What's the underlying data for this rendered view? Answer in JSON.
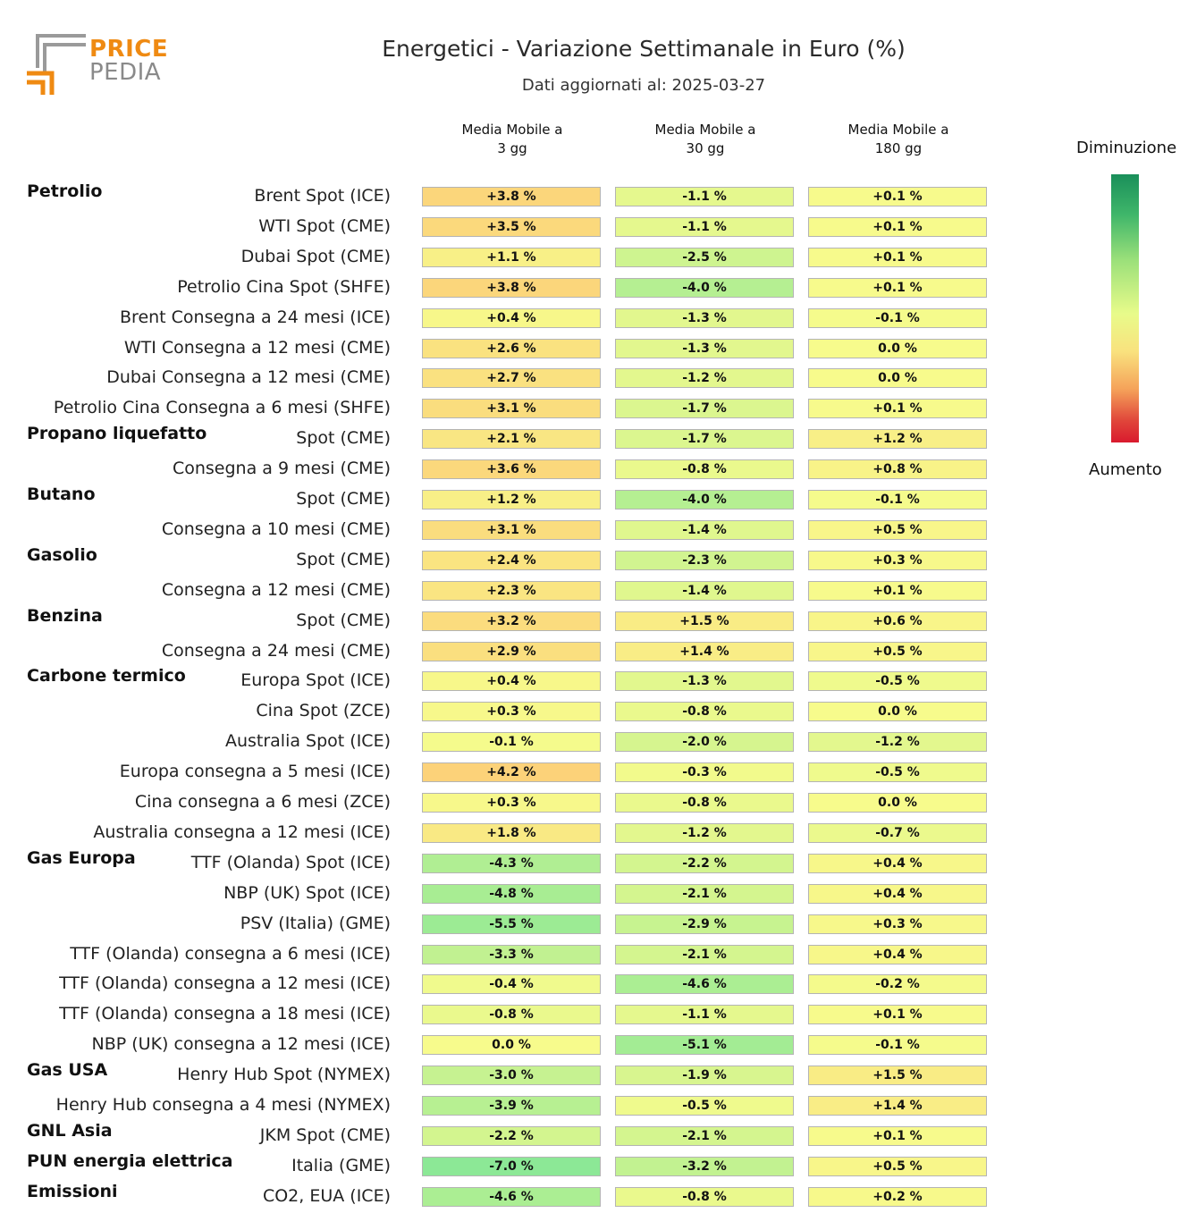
{
  "logo": {
    "word1": "PRICE",
    "word2": "PEDIA",
    "accent": "#ef8a12",
    "grey": "#9a9a9a"
  },
  "header": {
    "title": "Energetici - Variazione Settimanale in Euro (%)",
    "subtitle": "Dati aggiornati al: 2025-03-27"
  },
  "legend": {
    "top_label": "Diminuzione",
    "bottom_label": "Aumento"
  },
  "chart_data": {
    "type": "heatmap",
    "title": "Energetici - Variazione Settimanale in Euro (%)",
    "subtitle": "Dati aggiornati al: 2025-03-27",
    "columns": [
      {
        "line1": "Media Mobile a",
        "line2": "3 gg"
      },
      {
        "line1": "Media Mobile a",
        "line2": "30 gg"
      },
      {
        "line1": "Media Mobile a",
        "line2": "180 gg"
      }
    ],
    "unit": "%",
    "color_scale": {
      "decrease": "#1a8f5a",
      "neutral": "#f7fb8c",
      "increase": "#d91a2e"
    },
    "rows": [
      {
        "category": "Petrolio",
        "label": "Brent Spot (ICE)",
        "values": [
          3.8,
          -1.1,
          0.1
        ],
        "text": [
          "+3.8 %",
          "-1.1 %",
          "+0.1 %"
        ]
      },
      {
        "category": "",
        "label": "WTI Spot (CME)",
        "values": [
          3.5,
          -1.1,
          0.1
        ],
        "text": [
          "+3.5 %",
          "-1.1 %",
          "+0.1 %"
        ]
      },
      {
        "category": "",
        "label": "Dubai Spot (CME)",
        "values": [
          1.1,
          -2.5,
          0.1
        ],
        "text": [
          "+1.1 %",
          "-2.5 %",
          "+0.1 %"
        ]
      },
      {
        "category": "",
        "label": "Petrolio Cina Spot (SHFE)",
        "values": [
          3.8,
          -4.0,
          0.1
        ],
        "text": [
          "+3.8 %",
          "-4.0 %",
          "+0.1 %"
        ]
      },
      {
        "category": "",
        "label": "Brent Consegna a 24 mesi (ICE)",
        "values": [
          0.4,
          -1.3,
          -0.1
        ],
        "text": [
          "+0.4 %",
          "-1.3 %",
          "-0.1 %"
        ]
      },
      {
        "category": "",
        "label": "WTI Consegna a 12 mesi (CME)",
        "values": [
          2.6,
          -1.3,
          0.0
        ],
        "text": [
          "+2.6 %",
          "-1.3 %",
          "0.0 %"
        ]
      },
      {
        "category": "",
        "label": "Dubai Consegna a 12 mesi (CME)",
        "values": [
          2.7,
          -1.2,
          0.0
        ],
        "text": [
          "+2.7 %",
          "-1.2 %",
          "0.0 %"
        ]
      },
      {
        "category": "",
        "label": "Petrolio Cina Consegna a 6 mesi (SHFE)",
        "values": [
          3.1,
          -1.7,
          0.1
        ],
        "text": [
          "+3.1 %",
          "-1.7 %",
          "+0.1 %"
        ]
      },
      {
        "category": "Propano liquefatto",
        "label": "Spot (CME)",
        "values": [
          2.1,
          -1.7,
          1.2
        ],
        "text": [
          "+2.1 %",
          "-1.7 %",
          "+1.2 %"
        ]
      },
      {
        "category": "",
        "label": "Consegna a 9 mesi (CME)",
        "values": [
          3.6,
          -0.8,
          0.8
        ],
        "text": [
          "+3.6 %",
          "-0.8 %",
          "+0.8 %"
        ]
      },
      {
        "category": "Butano",
        "label": "Spot (CME)",
        "values": [
          1.2,
          -4.0,
          -0.1
        ],
        "text": [
          "+1.2 %",
          "-4.0 %",
          "-0.1 %"
        ]
      },
      {
        "category": "",
        "label": "Consegna a 10 mesi (CME)",
        "values": [
          3.1,
          -1.4,
          0.5
        ],
        "text": [
          "+3.1 %",
          "-1.4 %",
          "+0.5 %"
        ]
      },
      {
        "category": "Gasolio",
        "label": "Spot (CME)",
        "values": [
          2.4,
          -2.3,
          0.3
        ],
        "text": [
          "+2.4 %",
          "-2.3 %",
          "+0.3 %"
        ]
      },
      {
        "category": "",
        "label": "Consegna a 12 mesi (CME)",
        "values": [
          2.3,
          -1.4,
          0.1
        ],
        "text": [
          "+2.3 %",
          "-1.4 %",
          "+0.1 %"
        ]
      },
      {
        "category": "Benzina",
        "label": "Spot (CME)",
        "values": [
          3.2,
          1.5,
          0.6
        ],
        "text": [
          "+3.2 %",
          "+1.5 %",
          "+0.6 %"
        ]
      },
      {
        "category": "",
        "label": "Consegna a 24 mesi (CME)",
        "values": [
          2.9,
          1.4,
          0.5
        ],
        "text": [
          "+2.9 %",
          "+1.4 %",
          "+0.5 %"
        ]
      },
      {
        "category": "Carbone termico",
        "label": "Europa Spot (ICE)",
        "values": [
          0.4,
          -1.3,
          -0.5
        ],
        "text": [
          "+0.4 %",
          "-1.3 %",
          "-0.5 %"
        ]
      },
      {
        "category": "",
        "label": "Cina Spot (ZCE)",
        "values": [
          0.3,
          -0.8,
          0.0
        ],
        "text": [
          "+0.3 %",
          "-0.8 %",
          "0.0 %"
        ]
      },
      {
        "category": "",
        "label": "Australia Spot (ICE)",
        "values": [
          -0.1,
          -2.0,
          -1.2
        ],
        "text": [
          "-0.1 %",
          "-2.0 %",
          "-1.2 %"
        ]
      },
      {
        "category": "",
        "label": "Europa consegna a 5 mesi (ICE)",
        "values": [
          4.2,
          -0.3,
          -0.5
        ],
        "text": [
          "+4.2 %",
          "-0.3 %",
          "-0.5 %"
        ]
      },
      {
        "category": "",
        "label": "Cina consegna a 6 mesi (ZCE)",
        "values": [
          0.3,
          -0.8,
          0.0
        ],
        "text": [
          "+0.3 %",
          "-0.8 %",
          "0.0 %"
        ]
      },
      {
        "category": "",
        "label": "Australia consegna a 12 mesi (ICE)",
        "values": [
          1.8,
          -1.2,
          -0.7
        ],
        "text": [
          "+1.8 %",
          "-1.2 %",
          "-0.7 %"
        ]
      },
      {
        "category": "Gas Europa",
        "label": "TTF (Olanda) Spot (ICE)",
        "values": [
          -4.3,
          -2.2,
          0.4
        ],
        "text": [
          "-4.3 %",
          "-2.2 %",
          "+0.4 %"
        ]
      },
      {
        "category": "",
        "label": "NBP (UK) Spot (ICE)",
        "values": [
          -4.8,
          -2.1,
          0.4
        ],
        "text": [
          "-4.8 %",
          "-2.1 %",
          "+0.4 %"
        ]
      },
      {
        "category": "",
        "label": "PSV (Italia) (GME)",
        "values": [
          -5.5,
          -2.9,
          0.3
        ],
        "text": [
          "-5.5 %",
          "-2.9 %",
          "+0.3 %"
        ]
      },
      {
        "category": "",
        "label": "TTF (Olanda) consegna a 6 mesi (ICE)",
        "values": [
          -3.3,
          -2.1,
          0.4
        ],
        "text": [
          "-3.3 %",
          "-2.1 %",
          "+0.4 %"
        ]
      },
      {
        "category": "",
        "label": "TTF (Olanda) consegna a 12 mesi (ICE)",
        "values": [
          -0.4,
          -4.6,
          -0.2
        ],
        "text": [
          "-0.4 %",
          "-4.6 %",
          "-0.2 %"
        ]
      },
      {
        "category": "",
        "label": "TTF (Olanda) consegna a 18 mesi (ICE)",
        "values": [
          -0.8,
          -1.1,
          0.1
        ],
        "text": [
          "-0.8 %",
          "-1.1 %",
          "+0.1 %"
        ]
      },
      {
        "category": "",
        "label": "NBP (UK) consegna a 12 mesi (ICE)",
        "values": [
          0.0,
          -5.1,
          -0.1
        ],
        "text": [
          "0.0 %",
          "-5.1 %",
          "-0.1 %"
        ]
      },
      {
        "category": "Gas USA",
        "label": "Henry Hub Spot (NYMEX)",
        "values": [
          -3.0,
          -1.9,
          1.5
        ],
        "text": [
          "-3.0 %",
          "-1.9 %",
          "+1.5 %"
        ]
      },
      {
        "category": "",
        "label": "Henry Hub consegna a 4 mesi (NYMEX)",
        "values": [
          -3.9,
          -0.5,
          1.4
        ],
        "text": [
          "-3.9 %",
          "-0.5 %",
          "+1.4 %"
        ]
      },
      {
        "category": "GNL Asia",
        "label": "JKM Spot (CME)",
        "values": [
          -2.2,
          -2.1,
          0.1
        ],
        "text": [
          "-2.2 %",
          "-2.1 %",
          "+0.1 %"
        ]
      },
      {
        "category": "PUN energia elettrica",
        "label": "Italia (GME)",
        "values": [
          -7.0,
          -3.2,
          0.5
        ],
        "text": [
          "-7.0 %",
          "-3.2 %",
          "+0.5 %"
        ]
      },
      {
        "category": "Emissioni",
        "label": "CO2, EUA (ICE)",
        "values": [
          -4.6,
          -0.8,
          0.2
        ],
        "text": [
          "-4.6 %",
          "-0.8 %",
          "+0.2 %"
        ]
      }
    ]
  }
}
